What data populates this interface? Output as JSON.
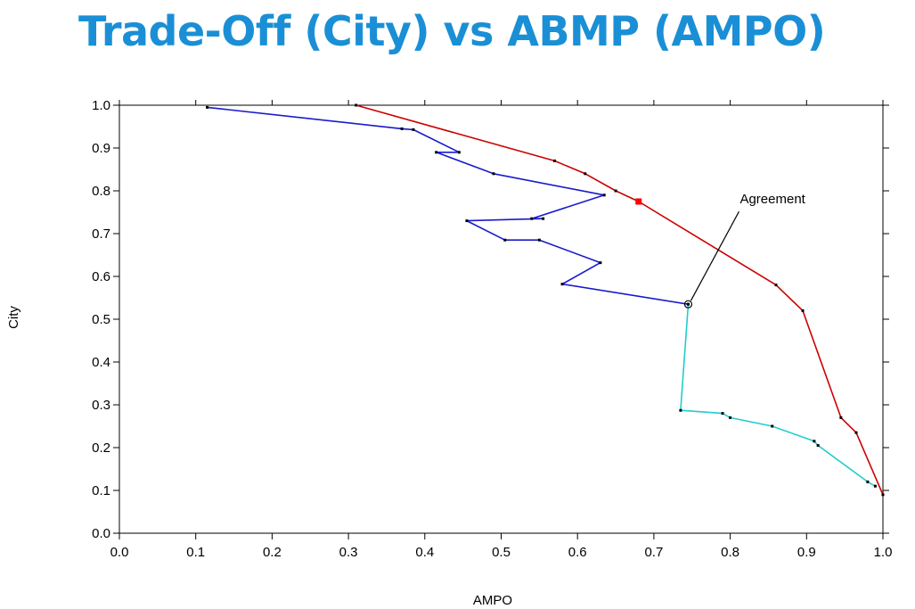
{
  "slide": {
    "title": "Trade-Off (City) vs ABMP (AMPO)",
    "title_color": "#1a8fd6"
  },
  "chart_data": {
    "type": "line",
    "title": "",
    "xlabel": "AMPO",
    "ylabel": "City",
    "xlim": [
      0.0,
      1.0
    ],
    "ylim": [
      0.0,
      1.0
    ],
    "xticks": [
      "0.0",
      "0.1",
      "0.2",
      "0.3",
      "0.4",
      "0.5",
      "0.6",
      "0.7",
      "0.8",
      "0.9",
      "1.0"
    ],
    "yticks": [
      "0.0",
      "0.1",
      "0.2",
      "0.3",
      "0.4",
      "0.5",
      "0.6",
      "0.7",
      "0.8",
      "0.9",
      "1.0"
    ],
    "grid": false,
    "series": [
      {
        "color": "#cc0000",
        "points": [
          [
            0.31,
            1.0
          ],
          [
            0.57,
            0.87
          ],
          [
            0.61,
            0.84
          ],
          [
            0.65,
            0.8
          ],
          [
            0.68,
            0.775
          ],
          [
            0.86,
            0.58
          ],
          [
            0.895,
            0.52
          ],
          [
            0.945,
            0.27
          ],
          [
            0.965,
            0.235
          ],
          [
            1.0,
            0.09
          ]
        ],
        "highlight": [
          0.68,
          0.775
        ]
      },
      {
        "color": "#1a1acc",
        "points": [
          [
            0.115,
            0.995
          ],
          [
            0.37,
            0.945
          ],
          [
            0.385,
            0.943
          ],
          [
            0.445,
            0.89
          ],
          [
            0.415,
            0.89
          ],
          [
            0.49,
            0.84
          ],
          [
            0.635,
            0.79
          ],
          [
            0.54,
            0.735
          ],
          [
            0.555,
            0.735
          ],
          [
            0.455,
            0.73
          ],
          [
            0.505,
            0.685
          ],
          [
            0.55,
            0.685
          ],
          [
            0.63,
            0.632
          ],
          [
            0.58,
            0.582
          ],
          [
            0.745,
            0.535
          ]
        ]
      },
      {
        "color": "#22cccc",
        "points": [
          [
            0.745,
            0.535
          ],
          [
            0.735,
            0.287
          ],
          [
            0.79,
            0.28
          ],
          [
            0.8,
            0.27
          ],
          [
            0.855,
            0.25
          ],
          [
            0.91,
            0.215
          ],
          [
            0.915,
            0.205
          ],
          [
            0.98,
            0.12
          ],
          [
            0.99,
            0.11
          ]
        ]
      }
    ],
    "annotations": [
      {
        "text": "Agreement",
        "point": [
          0.745,
          0.535
        ]
      }
    ]
  }
}
